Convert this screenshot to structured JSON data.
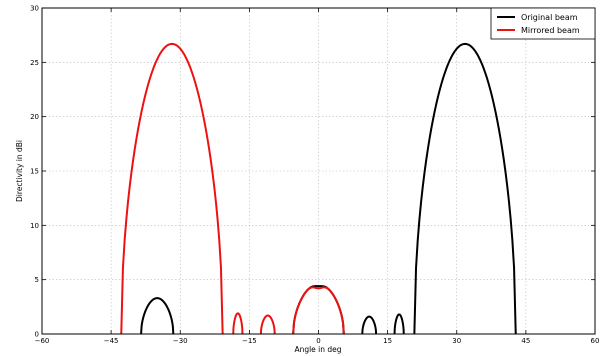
{
  "chart_data": {
    "type": "line",
    "xlabel": "Angle in deg",
    "ylabel": "Directivity in dBi",
    "xlim": [
      -60,
      60
    ],
    "ylim": [
      0,
      30
    ],
    "xticks": [
      -60,
      -45,
      -30,
      -15,
      0,
      15,
      30,
      45,
      60
    ],
    "yticks": [
      0,
      5,
      10,
      15,
      20,
      25,
      30
    ],
    "xtick_labels": [
      "−60",
      "−45",
      "−30",
      "−15",
      "0",
      "15",
      "30",
      "45",
      "60"
    ],
    "ytick_labels": [
      "0",
      "5",
      "10",
      "15",
      "20",
      "25",
      "30"
    ],
    "grid": true,
    "legend_position": "top-right",
    "series": [
      {
        "name": "Original beam",
        "color": "#000000",
        "lobes": [
          {
            "start": -38.5,
            "end": -31.5,
            "peak": 3.3
          },
          {
            "start": -5.5,
            "end": 5.5,
            "shape": "main-dip",
            "peak": 4.6,
            "dip": 4.4
          },
          {
            "start": 9.5,
            "end": 12.5,
            "peak": 1.6
          },
          {
            "start": 16.5,
            "end": 18.5,
            "peak": 1.8
          },
          {
            "start": 20.8,
            "end": 42.8,
            "peak": 26.7
          }
        ]
      },
      {
        "name": "Mirrored beam",
        "color": "#ee1111",
        "lobes": [
          {
            "start": -42.8,
            "end": -20.8,
            "peak": 26.7
          },
          {
            "start": -18.5,
            "end": -16.5,
            "peak": 1.9
          },
          {
            "start": -12.5,
            "end": -9.5,
            "peak": 1.7
          },
          {
            "start": -5.5,
            "end": 5.5,
            "shape": "main-dip",
            "peak": 4.6,
            "dip": 4.2
          },
          {
            "start": 31.5,
            "end": 38.5,
            "peak": 0.0
          }
        ]
      }
    ]
  }
}
